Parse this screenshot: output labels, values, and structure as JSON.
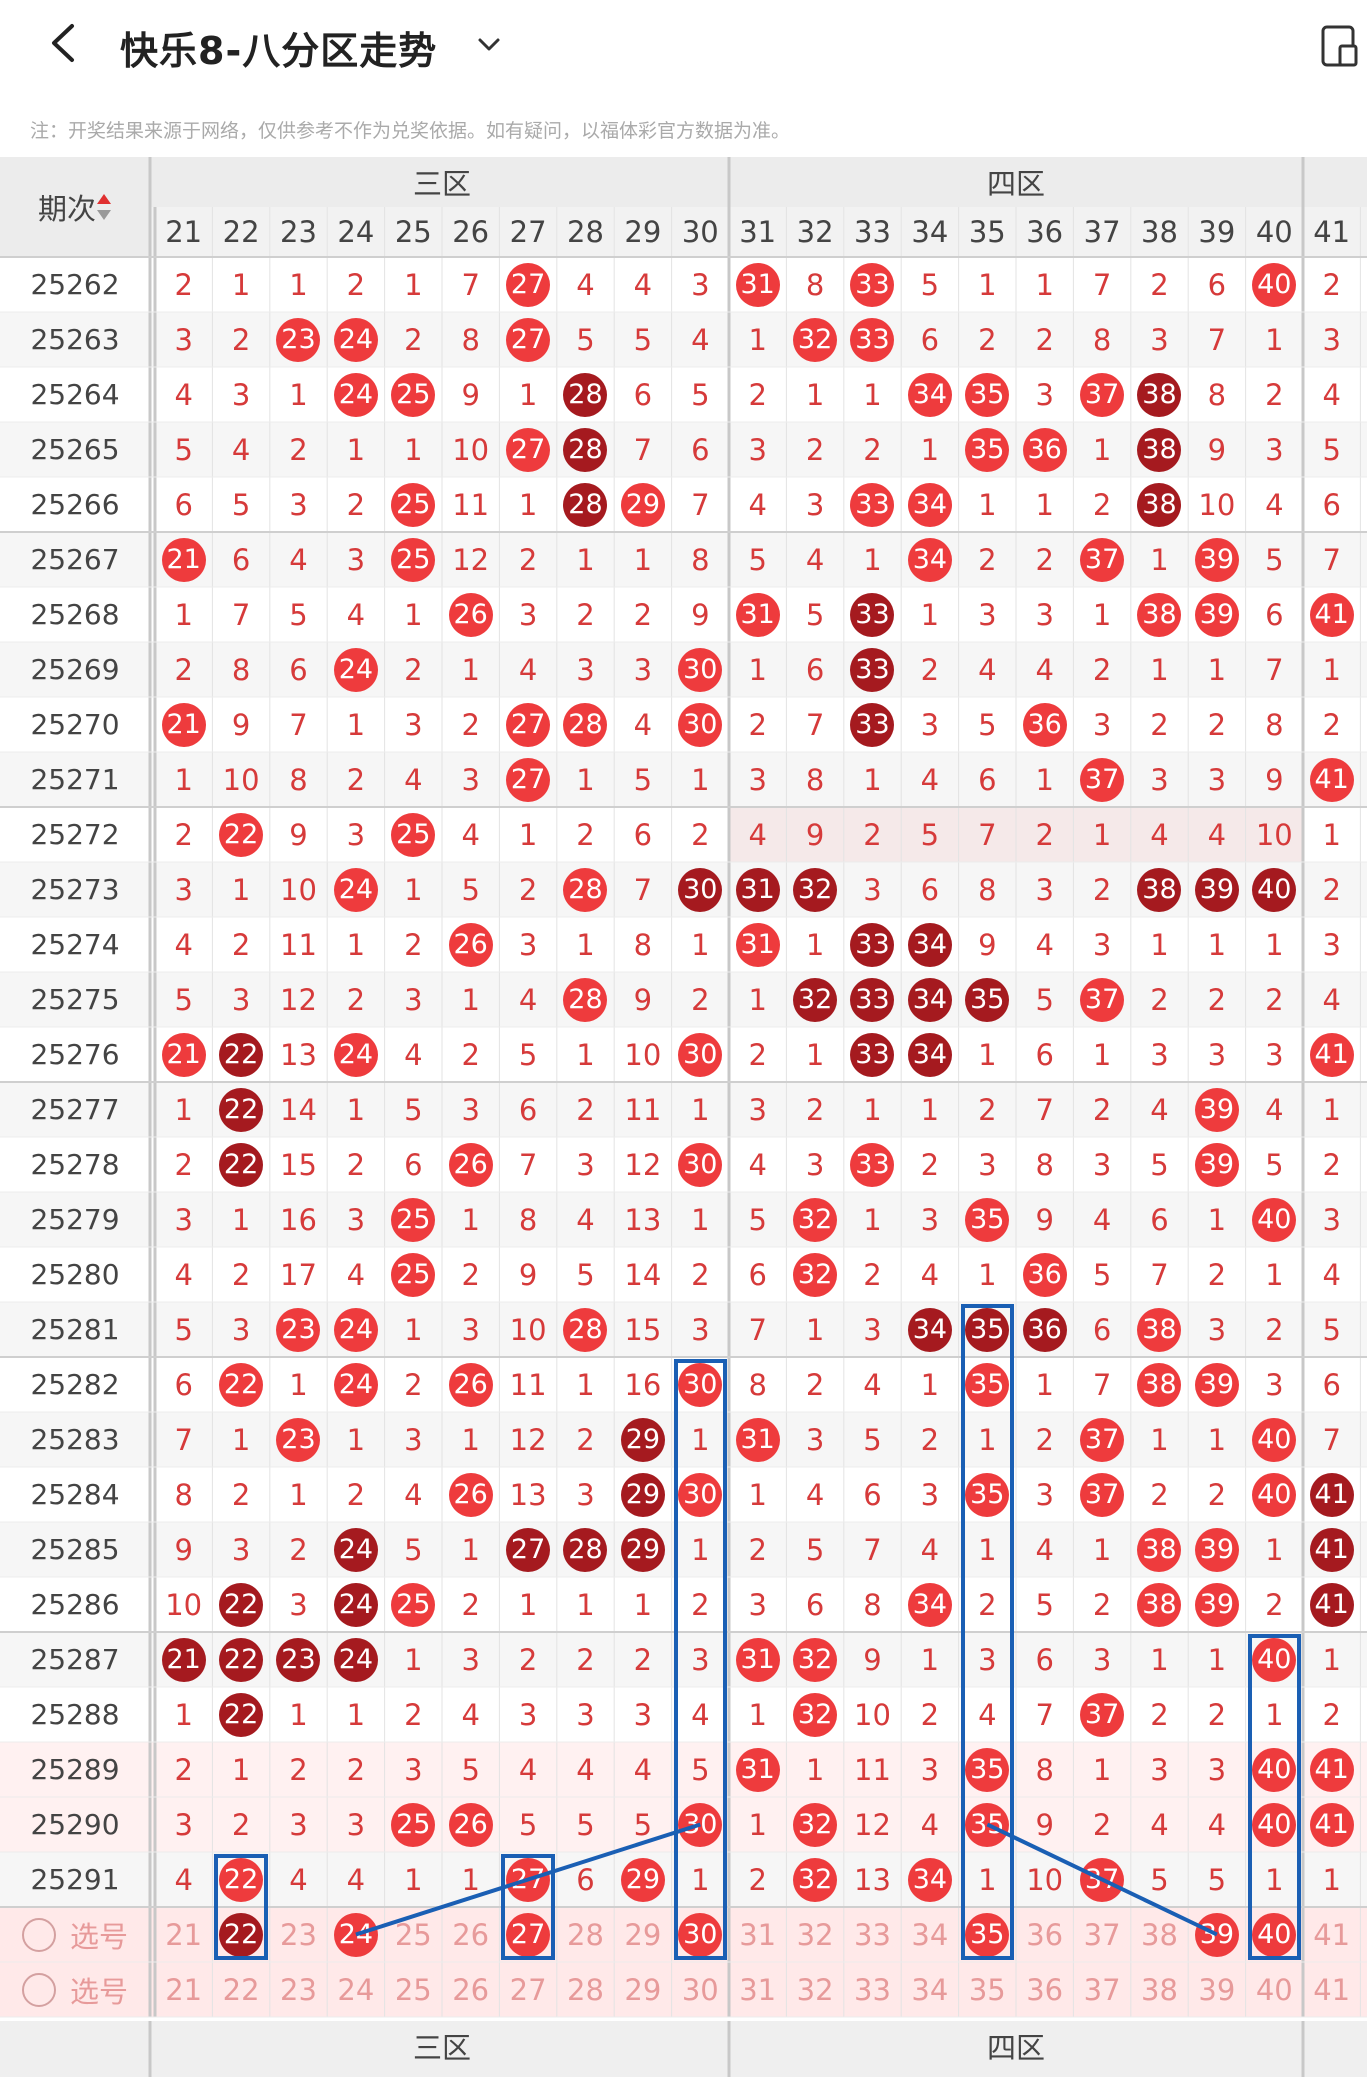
{
  "header": {
    "title": "快乐8-八分区走势"
  },
  "notice": "注：开奖结果来源于网络，仅供参考不作为兑奖依据。如有疑问，以福体彩官方数据为准。",
  "table": {
    "issue_header": "期次",
    "zones": [
      {
        "label": "三区",
        "start_col": 21,
        "end_col": 30
      },
      {
        "label": "四区",
        "start_col": 31,
        "end_col": 40
      }
    ],
    "columns": [
      21,
      22,
      23,
      24,
      25,
      26,
      27,
      28,
      29,
      30,
      31,
      32,
      33,
      34,
      35,
      36,
      37,
      38,
      39,
      40,
      41
    ],
    "rows": [
      {
        "issue": "25262",
        "cells": [
          "2",
          "1",
          "1",
          "2",
          "1",
          "7",
          "27",
          "4",
          "4",
          "3",
          "31",
          "8",
          "33",
          "5",
          "1",
          "1",
          "7",
          "2",
          "6",
          "40",
          "2"
        ],
        "balls": {
          "27": 1,
          "31": 1,
          "33": 1,
          "40": 1
        }
      },
      {
        "issue": "25263",
        "cells": [
          "3",
          "2",
          "23",
          "24",
          "2",
          "8",
          "27",
          "5",
          "5",
          "4",
          "1",
          "32",
          "33",
          "6",
          "2",
          "2",
          "8",
          "3",
          "7",
          "1",
          "3"
        ],
        "balls": {
          "23": 1,
          "24": 1,
          "27": 1,
          "32": 1,
          "33": 1
        }
      },
      {
        "issue": "25264",
        "cells": [
          "4",
          "3",
          "1",
          "24",
          "25",
          "9",
          "1",
          "28",
          "6",
          "5",
          "2",
          "1",
          "1",
          "34",
          "35",
          "3",
          "37",
          "38",
          "8",
          "2",
          "4"
        ],
        "balls": {
          "24": 1,
          "25": 1,
          "28": 2,
          "34": 1,
          "35": 1,
          "37": 1,
          "38": 2
        }
      },
      {
        "issue": "25265",
        "cells": [
          "5",
          "4",
          "2",
          "1",
          "1",
          "10",
          "27",
          "28",
          "7",
          "6",
          "3",
          "2",
          "2",
          "1",
          "35",
          "36",
          "1",
          "38",
          "9",
          "3",
          "5"
        ],
        "balls": {
          "27": 1,
          "28": 2,
          "35": 1,
          "36": 1,
          "38": 2
        }
      },
      {
        "issue": "25266",
        "cells": [
          "6",
          "5",
          "3",
          "2",
          "25",
          "11",
          "1",
          "28",
          "29",
          "7",
          "4",
          "3",
          "33",
          "34",
          "1",
          "1",
          "2",
          "38",
          "10",
          "4",
          "6"
        ],
        "balls": {
          "25": 1,
          "28": 2,
          "29": 1,
          "33": 1,
          "34": 1,
          "38": 2
        }
      },
      {
        "issue": "25267",
        "cells": [
          "21",
          "6",
          "4",
          "3",
          "25",
          "12",
          "2",
          "1",
          "1",
          "8",
          "5",
          "4",
          "1",
          "34",
          "2",
          "2",
          "37",
          "1",
          "39",
          "5",
          "7"
        ],
        "balls": {
          "21": 1,
          "25": 1,
          "34": 1,
          "37": 1,
          "39": 1
        }
      },
      {
        "issue": "25268",
        "cells": [
          "1",
          "7",
          "5",
          "4",
          "1",
          "26",
          "3",
          "2",
          "2",
          "9",
          "31",
          "5",
          "33",
          "1",
          "3",
          "3",
          "1",
          "38",
          "39",
          "6",
          "41"
        ],
        "balls": {
          "26": 1,
          "31": 1,
          "33": 2,
          "38": 1,
          "39": 1,
          "41": 1
        }
      },
      {
        "issue": "25269",
        "cells": [
          "2",
          "8",
          "6",
          "24",
          "2",
          "1",
          "4",
          "3",
          "3",
          "30",
          "1",
          "6",
          "33",
          "2",
          "4",
          "4",
          "2",
          "1",
          "1",
          "7",
          "1"
        ],
        "balls": {
          "24": 1,
          "30": 1,
          "33": 2
        }
      },
      {
        "issue": "25270",
        "cells": [
          "21",
          "9",
          "7",
          "1",
          "3",
          "2",
          "27",
          "28",
          "4",
          "30",
          "2",
          "7",
          "33",
          "3",
          "5",
          "36",
          "3",
          "2",
          "2",
          "8",
          "2"
        ],
        "balls": {
          "21": 1,
          "27": 1,
          "28": 1,
          "30": 1,
          "33": 2,
          "36": 1
        }
      },
      {
        "issue": "25271",
        "cells": [
          "1",
          "10",
          "8",
          "2",
          "4",
          "3",
          "27",
          "1",
          "5",
          "1",
          "3",
          "8",
          "1",
          "4",
          "6",
          "1",
          "37",
          "3",
          "3",
          "9",
          "41"
        ],
        "balls": {
          "27": 1,
          "37": 1,
          "41": 1
        }
      },
      {
        "issue": "25272",
        "cells": [
          "2",
          "22",
          "9",
          "3",
          "25",
          "4",
          "1",
          "2",
          "6",
          "2",
          "4",
          "9",
          "2",
          "5",
          "7",
          "2",
          "1",
          "4",
          "4",
          "10",
          "1"
        ],
        "balls": {
          "22": 1,
          "25": 1
        }
      },
      {
        "issue": "25273",
        "cells": [
          "3",
          "1",
          "10",
          "24",
          "1",
          "5",
          "2",
          "28",
          "7",
          "30",
          "31",
          "32",
          "3",
          "6",
          "8",
          "3",
          "2",
          "38",
          "39",
          "40",
          "2"
        ],
        "balls": {
          "24": 1,
          "28": 1,
          "30": 2,
          "31": 2,
          "32": 2,
          "38": 2,
          "39": 2,
          "40": 2
        }
      },
      {
        "issue": "25274",
        "cells": [
          "4",
          "2",
          "11",
          "1",
          "2",
          "26",
          "3",
          "1",
          "8",
          "1",
          "31",
          "1",
          "33",
          "34",
          "9",
          "4",
          "3",
          "1",
          "1",
          "1",
          "3"
        ],
        "balls": {
          "26": 1,
          "31": 1,
          "33": 2,
          "34": 2
        }
      },
      {
        "issue": "25275",
        "cells": [
          "5",
          "3",
          "12",
          "2",
          "3",
          "1",
          "4",
          "28",
          "9",
          "2",
          "1",
          "32",
          "33",
          "34",
          "35",
          "5",
          "37",
          "2",
          "2",
          "2",
          "4"
        ],
        "balls": {
          "28": 1,
          "32": 2,
          "33": 2,
          "34": 2,
          "35": 2,
          "37": 1
        }
      },
      {
        "issue": "25276",
        "cells": [
          "21",
          "22",
          "13",
          "24",
          "4",
          "2",
          "5",
          "1",
          "10",
          "30",
          "2",
          "1",
          "33",
          "34",
          "1",
          "6",
          "1",
          "3",
          "3",
          "3",
          "41"
        ],
        "balls": {
          "21": 1,
          "22": 2,
          "24": 1,
          "30": 1,
          "33": 2,
          "34": 2,
          "41": 1
        }
      },
      {
        "issue": "25277",
        "cells": [
          "1",
          "22",
          "14",
          "1",
          "5",
          "3",
          "6",
          "2",
          "11",
          "1",
          "3",
          "2",
          "1",
          "1",
          "2",
          "7",
          "2",
          "4",
          "39",
          "4",
          "1"
        ],
        "balls": {
          "22": 2,
          "39": 1
        }
      },
      {
        "issue": "25278",
        "cells": [
          "2",
          "22",
          "15",
          "2",
          "6",
          "26",
          "7",
          "3",
          "12",
          "30",
          "4",
          "3",
          "33",
          "2",
          "3",
          "8",
          "3",
          "5",
          "39",
          "5",
          "2"
        ],
        "balls": {
          "22": 2,
          "26": 1,
          "30": 1,
          "33": 1,
          "39": 1
        }
      },
      {
        "issue": "25279",
        "cells": [
          "3",
          "1",
          "16",
          "3",
          "25",
          "1",
          "8",
          "4",
          "13",
          "1",
          "5",
          "32",
          "1",
          "3",
          "35",
          "9",
          "4",
          "6",
          "1",
          "40",
          "3"
        ],
        "balls": {
          "25": 1,
          "32": 1,
          "35": 1,
          "40": 1
        }
      },
      {
        "issue": "25280",
        "cells": [
          "4",
          "2",
          "17",
          "4",
          "25",
          "2",
          "9",
          "5",
          "14",
          "2",
          "6",
          "32",
          "2",
          "4",
          "1",
          "36",
          "5",
          "7",
          "2",
          "1",
          "4"
        ],
        "balls": {
          "25": 1,
          "32": 1,
          "36": 1
        }
      },
      {
        "issue": "25281",
        "cells": [
          "5",
          "3",
          "23",
          "24",
          "1",
          "3",
          "10",
          "28",
          "15",
          "3",
          "7",
          "1",
          "3",
          "34",
          "35",
          "36",
          "6",
          "38",
          "3",
          "2",
          "5"
        ],
        "balls": {
          "23": 1,
          "24": 1,
          "28": 1,
          "34": 2,
          "35": 2,
          "36": 2,
          "38": 1
        }
      },
      {
        "issue": "25282",
        "cells": [
          "6",
          "22",
          "1",
          "24",
          "2",
          "26",
          "11",
          "1",
          "16",
          "30",
          "8",
          "2",
          "4",
          "1",
          "35",
          "1",
          "7",
          "38",
          "39",
          "3",
          "6"
        ],
        "balls": {
          "22": 1,
          "24": 1,
          "26": 1,
          "30": 1,
          "35": 1,
          "38": 1,
          "39": 1
        }
      },
      {
        "issue": "25283",
        "cells": [
          "7",
          "1",
          "23",
          "1",
          "3",
          "1",
          "12",
          "2",
          "29",
          "1",
          "31",
          "3",
          "5",
          "2",
          "1",
          "2",
          "37",
          "1",
          "1",
          "40",
          "7"
        ],
        "balls": {
          "23": 1,
          "29": 2,
          "31": 1,
          "37": 1,
          "40": 1
        }
      },
      {
        "issue": "25284",
        "cells": [
          "8",
          "2",
          "1",
          "2",
          "4",
          "26",
          "13",
          "3",
          "29",
          "30",
          "1",
          "4",
          "6",
          "3",
          "35",
          "3",
          "37",
          "2",
          "2",
          "40",
          "41"
        ],
        "balls": {
          "26": 1,
          "29": 2,
          "30": 1,
          "35": 1,
          "37": 1,
          "40": 1,
          "41": 2
        }
      },
      {
        "issue": "25285",
        "cells": [
          "9",
          "3",
          "2",
          "24",
          "5",
          "1",
          "27",
          "28",
          "29",
          "1",
          "2",
          "5",
          "7",
          "4",
          "1",
          "4",
          "1",
          "38",
          "39",
          "1",
          "41"
        ],
        "balls": {
          "24": 2,
          "27": 2,
          "28": 2,
          "29": 2,
          "38": 1,
          "39": 1,
          "41": 2
        }
      },
      {
        "issue": "25286",
        "cells": [
          "10",
          "22",
          "3",
          "24",
          "25",
          "2",
          "1",
          "1",
          "1",
          "2",
          "3",
          "6",
          "8",
          "34",
          "2",
          "5",
          "2",
          "38",
          "39",
          "2",
          "41"
        ],
        "balls": {
          "22": 2,
          "24": 2,
          "25": 1,
          "34": 1,
          "38": 1,
          "39": 1,
          "41": 2
        }
      },
      {
        "issue": "25287",
        "cells": [
          "21",
          "22",
          "23",
          "24",
          "1",
          "3",
          "2",
          "2",
          "2",
          "3",
          "31",
          "32",
          "9",
          "1",
          "3",
          "6",
          "3",
          "1",
          "1",
          "40",
          "1"
        ],
        "balls": {
          "21": 2,
          "22": 2,
          "23": 2,
          "24": 2,
          "31": 1,
          "32": 1,
          "40": 1
        }
      },
      {
        "issue": "25288",
        "cells": [
          "1",
          "22",
          "1",
          "1",
          "2",
          "4",
          "3",
          "3",
          "3",
          "4",
          "1",
          "32",
          "10",
          "2",
          "4",
          "7",
          "37",
          "2",
          "2",
          "1",
          "2"
        ],
        "balls": {
          "22": 2,
          "32": 1,
          "37": 1
        }
      },
      {
        "issue": "25289",
        "cells": [
          "2",
          "1",
          "2",
          "2",
          "3",
          "5",
          "4",
          "4",
          "4",
          "5",
          "31",
          "1",
          "11",
          "3",
          "35",
          "8",
          "1",
          "3",
          "3",
          "40",
          "41"
        ],
        "balls": {
          "31": 1,
          "35": 1,
          "40": 1,
          "41": 1
        }
      },
      {
        "issue": "25290",
        "cells": [
          "3",
          "2",
          "3",
          "3",
          "25",
          "26",
          "5",
          "5",
          "5",
          "30",
          "1",
          "32",
          "12",
          "4",
          "35",
          "9",
          "2",
          "4",
          "4",
          "40",
          "41"
        ],
        "balls": {
          "25": 1,
          "26": 1,
          "30": 1,
          "32": 1,
          "35": 1,
          "40": 1,
          "41": 1
        }
      },
      {
        "issue": "25291",
        "cells": [
          "4",
          "22",
          "4",
          "4",
          "1",
          "1",
          "27",
          "6",
          "29",
          "1",
          "2",
          "32",
          "13",
          "34",
          "1",
          "10",
          "37",
          "5",
          "5",
          "1",
          "1"
        ],
        "balls": {
          "22": 1,
          "27": 1,
          "29": 1,
          "32": 1,
          "34": 1,
          "37": 1
        }
      }
    ],
    "select_rows": [
      {
        "label": "选号",
        "picked": {
          "22": 2,
          "24": 1,
          "27": 1,
          "30": 1,
          "35": 1,
          "39": 1,
          "40": 1
        }
      },
      {
        "label": "选号",
        "picked": {}
      }
    ],
    "footer_zones": [
      "三区",
      "四区"
    ]
  },
  "colors": {
    "ball_red": "#ee3b3d",
    "ball_dark": "#a51a1f",
    "number_red": "#d63a3a",
    "highlight_blue": "#1a5fb4"
  }
}
